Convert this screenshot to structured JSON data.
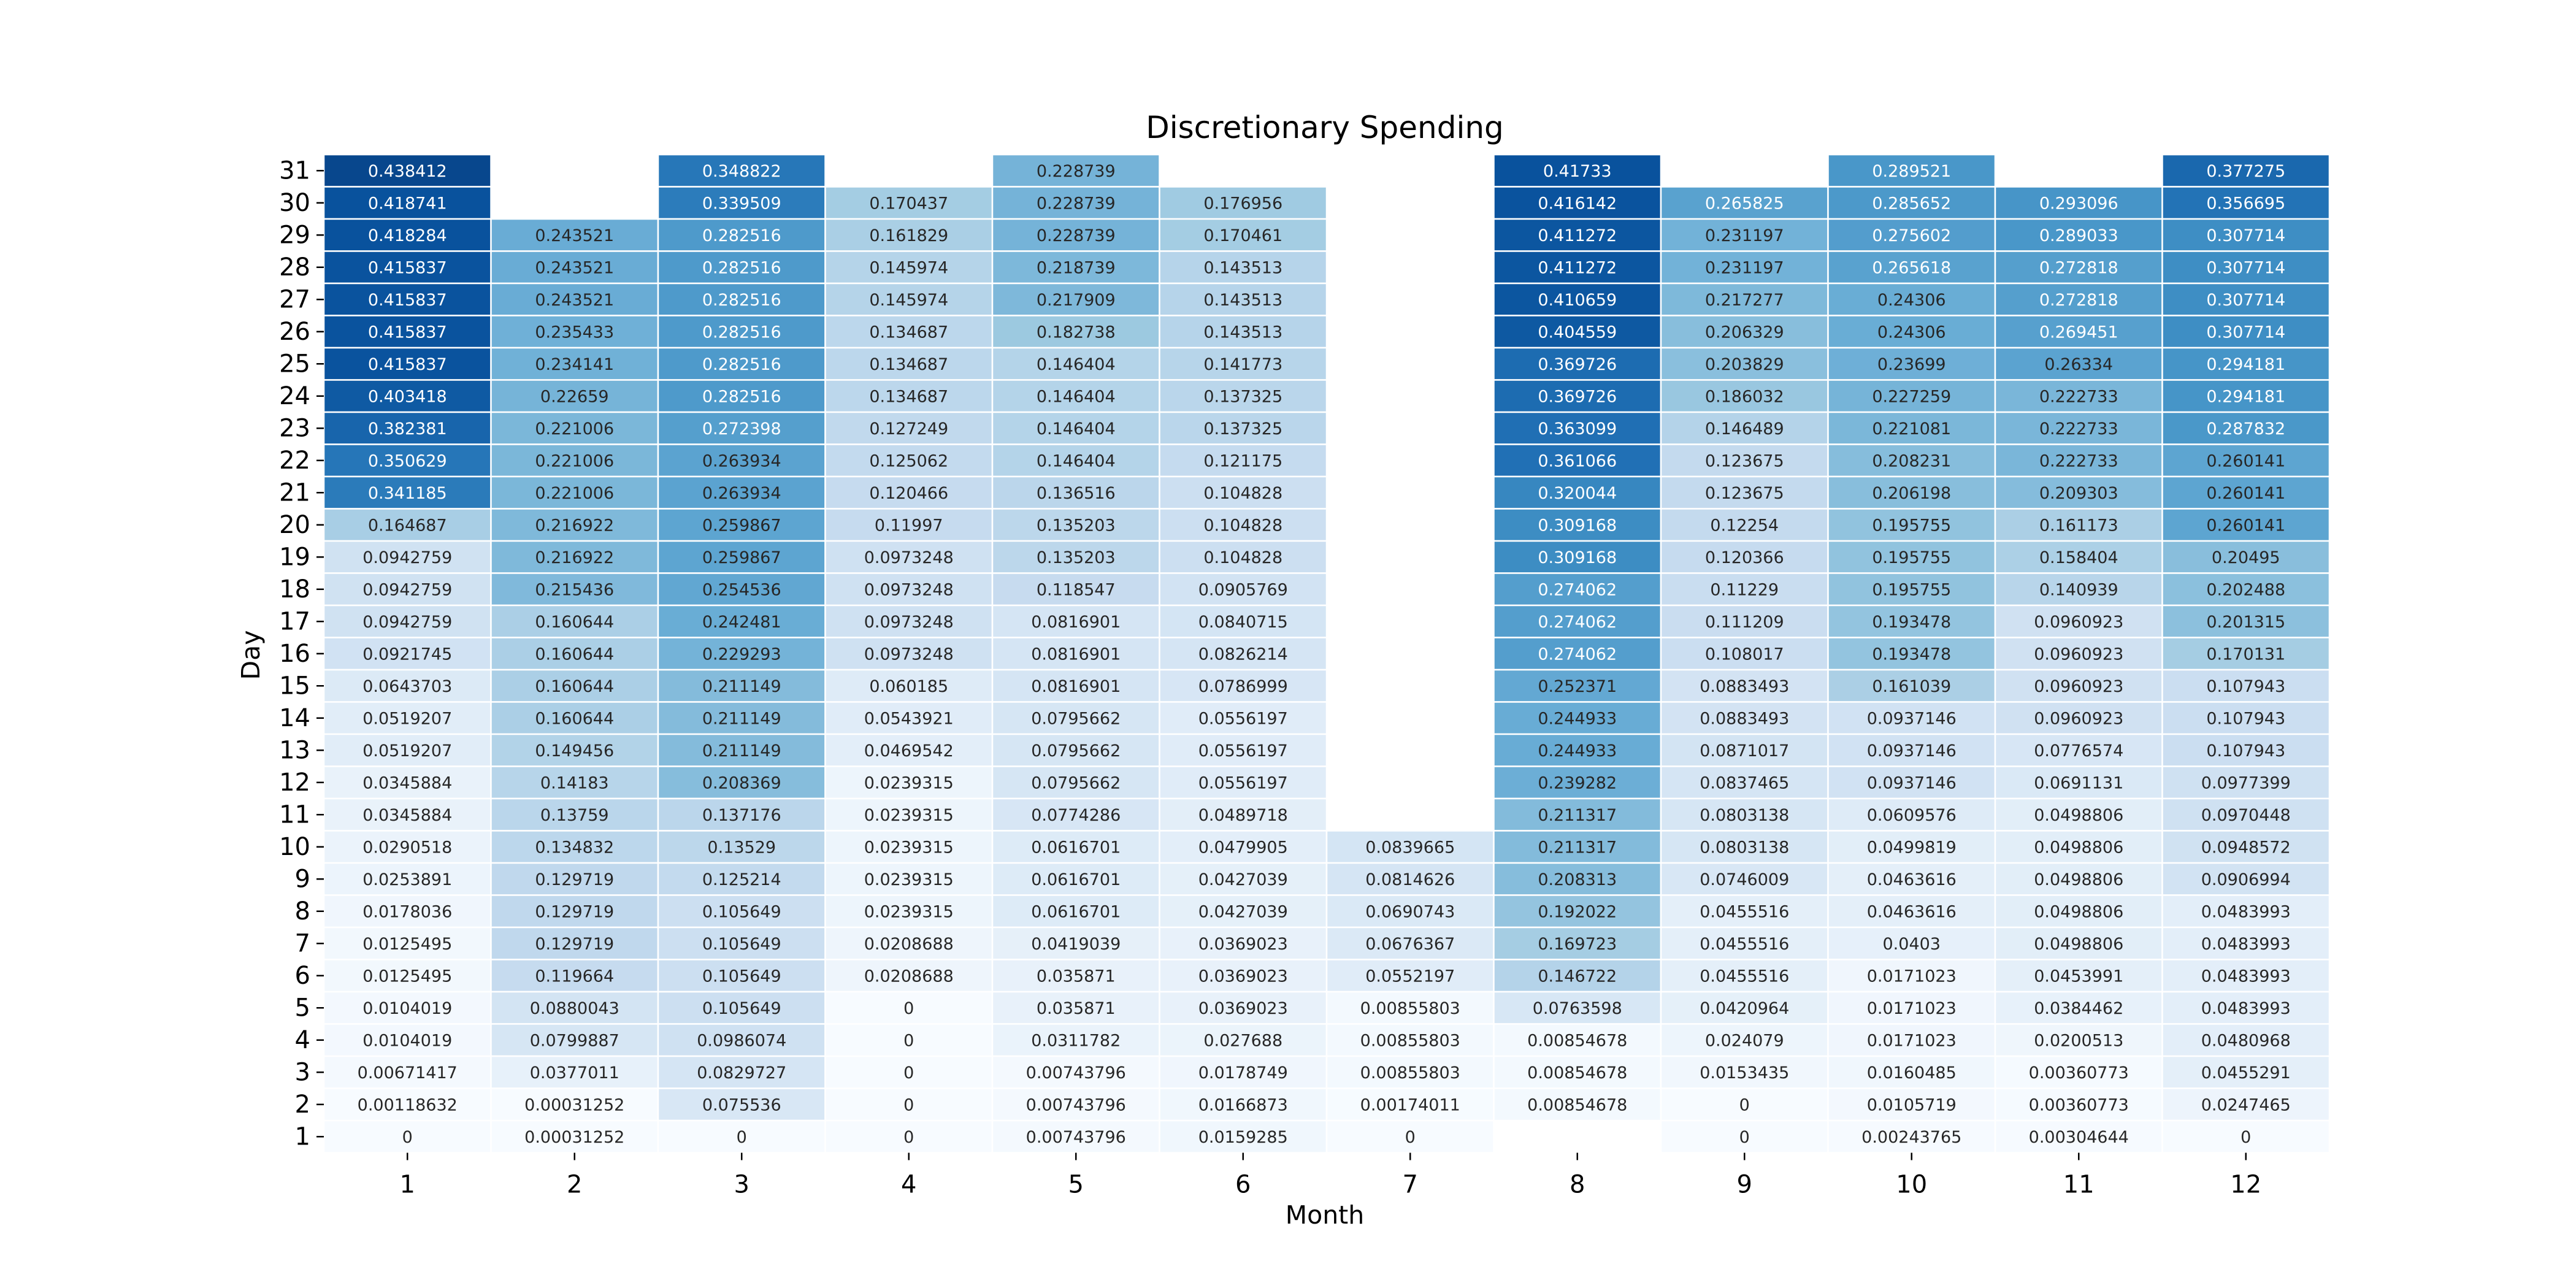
{
  "chart_data": {
    "type": "heatmap",
    "title": "Discretionary Spending",
    "xlabel": "Month",
    "ylabel": "Day",
    "x_categories": [
      "1",
      "2",
      "3",
      "4",
      "5",
      "6",
      "7",
      "8",
      "9",
      "10",
      "11",
      "12"
    ],
    "y_categories": [
      "31",
      "30",
      "29",
      "28",
      "27",
      "26",
      "25",
      "24",
      "23",
      "22",
      "21",
      "20",
      "19",
      "18",
      "17",
      "16",
      "15",
      "14",
      "13",
      "12",
      "11",
      "10",
      "9",
      "8",
      "7",
      "6",
      "5",
      "4",
      "3",
      "2",
      "1"
    ],
    "colormap": "Blues",
    "value_range": [
      0,
      0.48
    ],
    "grid_color": "#ffffff",
    "values": [
      [
        "0.438412",
        null,
        "0.348822",
        null,
        "0.228739",
        null,
        null,
        "0.41733",
        null,
        "0.289521",
        null,
        "0.377275"
      ],
      [
        "0.418741",
        null,
        "0.339509",
        "0.170437",
        "0.228739",
        "0.176956",
        null,
        "0.416142",
        "0.265825",
        "0.285652",
        "0.293096",
        "0.356695"
      ],
      [
        "0.418284",
        "0.243521",
        "0.282516",
        "0.161829",
        "0.228739",
        "0.170461",
        null,
        "0.411272",
        "0.231197",
        "0.275602",
        "0.289033",
        "0.307714"
      ],
      [
        "0.415837",
        "0.243521",
        "0.282516",
        "0.145974",
        "0.218739",
        "0.143513",
        null,
        "0.411272",
        "0.231197",
        "0.265618",
        "0.272818",
        "0.307714"
      ],
      [
        "0.415837",
        "0.243521",
        "0.282516",
        "0.145974",
        "0.217909",
        "0.143513",
        null,
        "0.410659",
        "0.217277",
        "0.24306",
        "0.272818",
        "0.307714"
      ],
      [
        "0.415837",
        "0.235433",
        "0.282516",
        "0.134687",
        "0.182738",
        "0.143513",
        null,
        "0.404559",
        "0.206329",
        "0.24306",
        "0.269451",
        "0.307714"
      ],
      [
        "0.415837",
        "0.234141",
        "0.282516",
        "0.134687",
        "0.146404",
        "0.141773",
        null,
        "0.369726",
        "0.203829",
        "0.23699",
        "0.26334",
        "0.294181"
      ],
      [
        "0.403418",
        "0.22659",
        "0.282516",
        "0.134687",
        "0.146404",
        "0.137325",
        null,
        "0.369726",
        "0.186032",
        "0.227259",
        "0.222733",
        "0.294181"
      ],
      [
        "0.382381",
        "0.221006",
        "0.272398",
        "0.127249",
        "0.146404",
        "0.137325",
        null,
        "0.363099",
        "0.146489",
        "0.221081",
        "0.222733",
        "0.287832"
      ],
      [
        "0.350629",
        "0.221006",
        "0.263934",
        "0.125062",
        "0.146404",
        "0.121175",
        null,
        "0.361066",
        "0.123675",
        "0.208231",
        "0.222733",
        "0.260141"
      ],
      [
        "0.341185",
        "0.221006",
        "0.263934",
        "0.120466",
        "0.136516",
        "0.104828",
        null,
        "0.320044",
        "0.123675",
        "0.206198",
        "0.209303",
        "0.260141"
      ],
      [
        "0.164687",
        "0.216922",
        "0.259867",
        "0.11997",
        "0.135203",
        "0.104828",
        null,
        "0.309168",
        "0.12254",
        "0.195755",
        "0.161173",
        "0.260141"
      ],
      [
        "0.0942759",
        "0.216922",
        "0.259867",
        "0.0973248",
        "0.135203",
        "0.104828",
        null,
        "0.309168",
        "0.120366",
        "0.195755",
        "0.158404",
        "0.20495"
      ],
      [
        "0.0942759",
        "0.215436",
        "0.254536",
        "0.0973248",
        "0.118547",
        "0.0905769",
        null,
        "0.274062",
        "0.11229",
        "0.195755",
        "0.140939",
        "0.202488"
      ],
      [
        "0.0942759",
        "0.160644",
        "0.242481",
        "0.0973248",
        "0.0816901",
        "0.0840715",
        null,
        "0.274062",
        "0.111209",
        "0.193478",
        "0.0960923",
        "0.201315"
      ],
      [
        "0.0921745",
        "0.160644",
        "0.229293",
        "0.0973248",
        "0.0816901",
        "0.0826214",
        null,
        "0.274062",
        "0.108017",
        "0.193478",
        "0.0960923",
        "0.170131"
      ],
      [
        "0.0643703",
        "0.160644",
        "0.211149",
        "0.060185",
        "0.0816901",
        "0.0786999",
        null,
        "0.252371",
        "0.0883493",
        "0.161039",
        "0.0960923",
        "0.107943"
      ],
      [
        "0.0519207",
        "0.160644",
        "0.211149",
        "0.0543921",
        "0.0795662",
        "0.0556197",
        null,
        "0.244933",
        "0.0883493",
        "0.0937146",
        "0.0960923",
        "0.107943"
      ],
      [
        "0.0519207",
        "0.149456",
        "0.211149",
        "0.0469542",
        "0.0795662",
        "0.0556197",
        null,
        "0.244933",
        "0.0871017",
        "0.0937146",
        "0.0776574",
        "0.107943"
      ],
      [
        "0.0345884",
        "0.14183",
        "0.208369",
        "0.0239315",
        "0.0795662",
        "0.0556197",
        null,
        "0.239282",
        "0.0837465",
        "0.0937146",
        "0.0691131",
        "0.0977399"
      ],
      [
        "0.0345884",
        "0.13759",
        "0.137176",
        "0.0239315",
        "0.0774286",
        "0.0489718",
        null,
        "0.211317",
        "0.0803138",
        "0.0609576",
        "0.0498806",
        "0.0970448"
      ],
      [
        "0.0290518",
        "0.134832",
        "0.13529",
        "0.0239315",
        "0.0616701",
        "0.0479905",
        "0.0839665",
        "0.211317",
        "0.0803138",
        "0.0499819",
        "0.0498806",
        "0.0948572"
      ],
      [
        "0.0253891",
        "0.129719",
        "0.125214",
        "0.0239315",
        "0.0616701",
        "0.0427039",
        "0.0814626",
        "0.208313",
        "0.0746009",
        "0.0463616",
        "0.0498806",
        "0.0906994"
      ],
      [
        "0.0178036",
        "0.129719",
        "0.105649",
        "0.0239315",
        "0.0616701",
        "0.0427039",
        "0.0690743",
        "0.192022",
        "0.0455516",
        "0.0463616",
        "0.0498806",
        "0.0483993"
      ],
      [
        "0.0125495",
        "0.129719",
        "0.105649",
        "0.0208688",
        "0.0419039",
        "0.0369023",
        "0.0676367",
        "0.169723",
        "0.0455516",
        "0.0403",
        "0.0498806",
        "0.0483993"
      ],
      [
        "0.0125495",
        "0.119664",
        "0.105649",
        "0.0208688",
        "0.035871",
        "0.0369023",
        "0.0552197",
        "0.146722",
        "0.0455516",
        "0.0171023",
        "0.0453991",
        "0.0483993"
      ],
      [
        "0.0104019",
        "0.0880043",
        "0.105649",
        "0",
        "0.035871",
        "0.0369023",
        "0.00855803",
        "0.0763598",
        "0.0420964",
        "0.0171023",
        "0.0384462",
        "0.0483993"
      ],
      [
        "0.0104019",
        "0.0799887",
        "0.0986074",
        "0",
        "0.0311782",
        "0.027688",
        "0.00855803",
        "0.00854678",
        "0.024079",
        "0.0171023",
        "0.0200513",
        "0.0480968"
      ],
      [
        "0.00671417",
        "0.0377011",
        "0.0829727",
        "0",
        "0.00743796",
        "0.0178749",
        "0.00855803",
        "0.00854678",
        "0.0153435",
        "0.0160485",
        "0.00360773",
        "0.0455291"
      ],
      [
        "0.00118632",
        "0.00031252",
        "0.075536",
        "0",
        "0.00743796",
        "0.0166873",
        "0.00174011",
        "0.00854678",
        "0",
        "0.0105719",
        "0.00360773",
        "0.0247465"
      ],
      [
        "0",
        "0.00031252",
        "0",
        "0",
        "0.00743796",
        "0.0159285",
        "0",
        null,
        "0",
        "0.00243765",
        "0.00304644",
        "0"
      ]
    ]
  }
}
